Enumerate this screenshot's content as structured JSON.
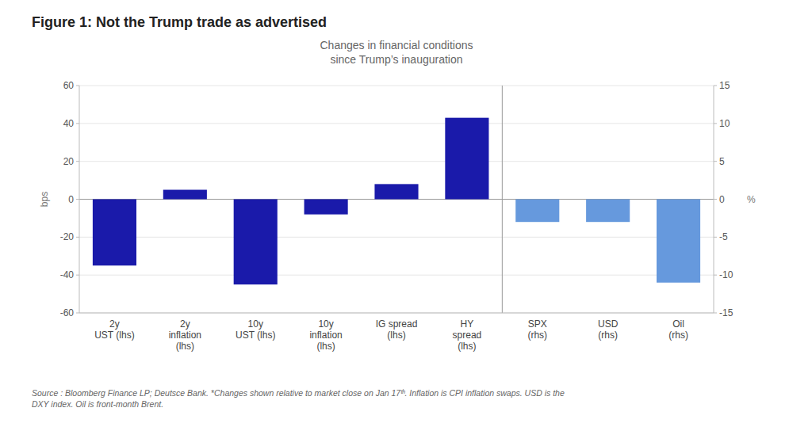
{
  "chart_data": {
    "type": "bar",
    "title": "Figure 1: Not the Trump trade as advertised",
    "subtitle": "Changes in financial conditions\nsince Trump’s inauguration",
    "annotations": [
      "Source : Bloomberg Finance LP; Deutsce Bank.  *Changes shown relative to market close on Jan 17ᵗʰ. Inflation is CPI inflation swaps. USD is the\nDXY index. Oil is front-month Brent."
    ],
    "categories": [
      "2y\nUST (lhs)",
      "2y\ninflation\n(lhs)",
      "10y\nUST (lhs)",
      "10y\ninflation\n(lhs)",
      "IG spread\n(lhs)",
      "HY\nspread\n(lhs)",
      "SPX\n(rhs)",
      "USD\n(rhs)",
      "Oil\n(rhs)"
    ],
    "series": [
      {
        "color": "#1a1aaa",
        "values": [
          -35,
          5,
          -45,
          -8,
          8,
          43,
          null,
          null,
          null
        ]
      },
      {
        "color": "#6699dd",
        "axis": "y2",
        "values": [
          null,
          null,
          null,
          null,
          null,
          null,
          -3.0,
          -3.0,
          -11.0
        ]
      }
    ],
    "ylabel": "bps",
    "y2label": "%",
    "ylim": [
      -60,
      60
    ],
    "yticks": [
      -60,
      -40,
      -20,
      0,
      20,
      40,
      60
    ],
    "y2lim": [
      -15,
      15
    ],
    "y2ticks": [
      -15,
      -10,
      -5,
      0,
      5,
      10,
      15
    ],
    "grid": true
  }
}
